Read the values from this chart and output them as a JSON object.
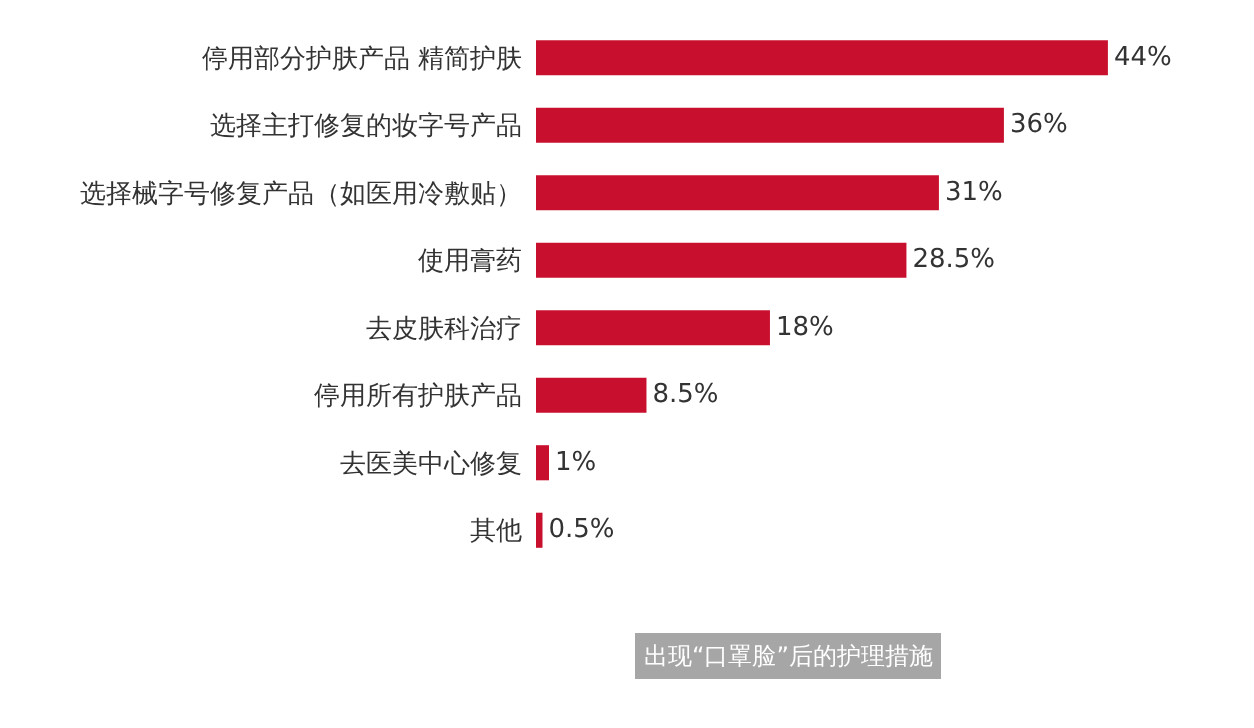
{
  "chart_data": {
    "type": "bar",
    "orientation": "horizontal",
    "title": "出现“口罩脸”后的护理措施",
    "categories": [
      "停用部分护肤产品 精简护肤",
      "选择主打修复的妆字号产品",
      "选择械字号修复产品（如医用冷敷贴）",
      "使用膏药",
      "去皮肤科治疗",
      "停用所有护肤产品",
      "去医美中心修复",
      "其他"
    ],
    "values": [
      44,
      36,
      31,
      28.5,
      18,
      8.5,
      1,
      0.5
    ],
    "value_labels": [
      "44%",
      "36%",
      "31%",
      "28.5%",
      "18%",
      "8.5%",
      "1%",
      "0.5%"
    ],
    "color": "#c8102e",
    "grid": false,
    "tick_labels": "y"
  }
}
